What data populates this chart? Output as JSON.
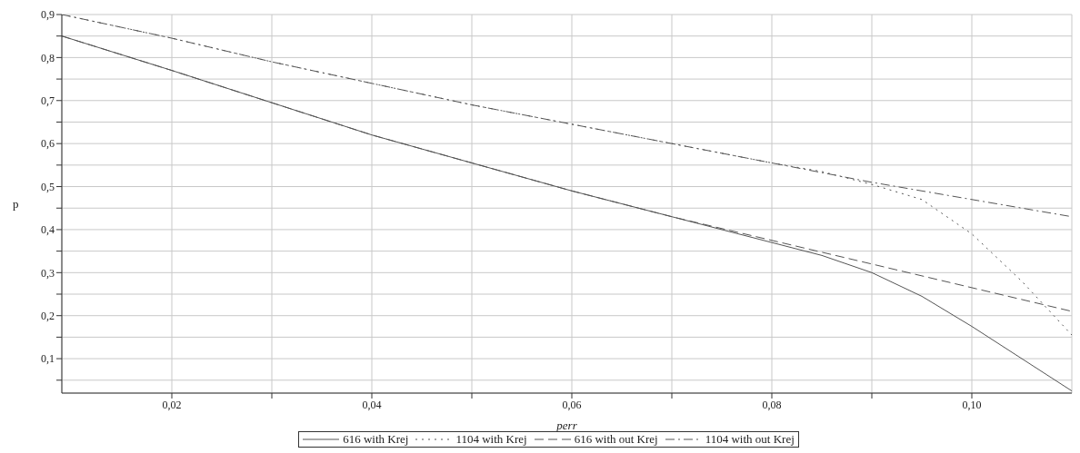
{
  "chart_data": {
    "type": "line",
    "xlabel": "perr",
    "ylabel": "p",
    "xlim": [
      0.009,
      0.11
    ],
    "ylim": [
      0.02,
      0.9
    ],
    "xticks": [
      {
        "value": 0.02,
        "label": "0,02"
      },
      {
        "value": 0.03,
        "label": null
      },
      {
        "value": 0.04,
        "label": "0,04"
      },
      {
        "value": 0.05,
        "label": null
      },
      {
        "value": 0.06,
        "label": "0,06"
      },
      {
        "value": 0.07,
        "label": null
      },
      {
        "value": 0.08,
        "label": "0,08"
      },
      {
        "value": 0.09,
        "label": null
      },
      {
        "value": 0.1,
        "label": "0,10"
      }
    ],
    "yticks": [
      {
        "value": 0.05,
        "label": null
      },
      {
        "value": 0.1,
        "label": "0,1"
      },
      {
        "value": 0.15,
        "label": null
      },
      {
        "value": 0.2,
        "label": "0,2"
      },
      {
        "value": 0.25,
        "label": null
      },
      {
        "value": 0.3,
        "label": "0,3"
      },
      {
        "value": 0.35,
        "label": null
      },
      {
        "value": 0.4,
        "label": "0,4"
      },
      {
        "value": 0.45,
        "label": null
      },
      {
        "value": 0.5,
        "label": "0,5"
      },
      {
        "value": 0.55,
        "label": null
      },
      {
        "value": 0.6,
        "label": "0,6"
      },
      {
        "value": 0.65,
        "label": null
      },
      {
        "value": 0.7,
        "label": "0,7"
      },
      {
        "value": 0.75,
        "label": null
      },
      {
        "value": 0.8,
        "label": "0,8"
      },
      {
        "value": 0.85,
        "label": null
      },
      {
        "value": 0.9,
        "label": "0,9"
      }
    ],
    "grid": true,
    "legend": "bottom",
    "marker": "none",
    "series": [
      {
        "name": "616 with Krej",
        "color": "#555555",
        "line_style": "solid",
        "x": [
          0.009,
          0.02,
          0.03,
          0.04,
          0.05,
          0.06,
          0.07,
          0.08,
          0.085,
          0.09,
          0.095,
          0.1,
          0.105,
          0.11
        ],
        "values": [
          0.85,
          0.77,
          0.695,
          0.62,
          0.555,
          0.49,
          0.43,
          0.37,
          0.34,
          0.3,
          0.245,
          0.175,
          0.1,
          0.025
        ]
      },
      {
        "name": "1104 with Krej",
        "color": "#555555",
        "line_style": "dotted",
        "x": [
          0.009,
          0.02,
          0.03,
          0.04,
          0.05,
          0.06,
          0.07,
          0.08,
          0.085,
          0.09,
          0.095,
          0.1,
          0.105,
          0.11
        ],
        "values": [
          0.9,
          0.845,
          0.79,
          0.74,
          0.69,
          0.645,
          0.6,
          0.555,
          0.535,
          0.505,
          0.47,
          0.39,
          0.28,
          0.155
        ]
      },
      {
        "name": "616 with out Krej",
        "color": "#555555",
        "line_style": "dashed",
        "x": [
          0.009,
          0.02,
          0.03,
          0.04,
          0.05,
          0.06,
          0.07,
          0.08,
          0.09,
          0.1,
          0.11
        ],
        "values": [
          0.85,
          0.77,
          0.695,
          0.62,
          0.555,
          0.49,
          0.43,
          0.375,
          0.32,
          0.265,
          0.21
        ]
      },
      {
        "name": "1104 with out Krej",
        "color": "#555555",
        "line_style": "dashdot",
        "x": [
          0.009,
          0.02,
          0.03,
          0.04,
          0.05,
          0.06,
          0.07,
          0.08,
          0.09,
          0.1,
          0.11
        ],
        "values": [
          0.9,
          0.845,
          0.79,
          0.74,
          0.69,
          0.645,
          0.6,
          0.555,
          0.51,
          0.47,
          0.43
        ]
      }
    ]
  }
}
